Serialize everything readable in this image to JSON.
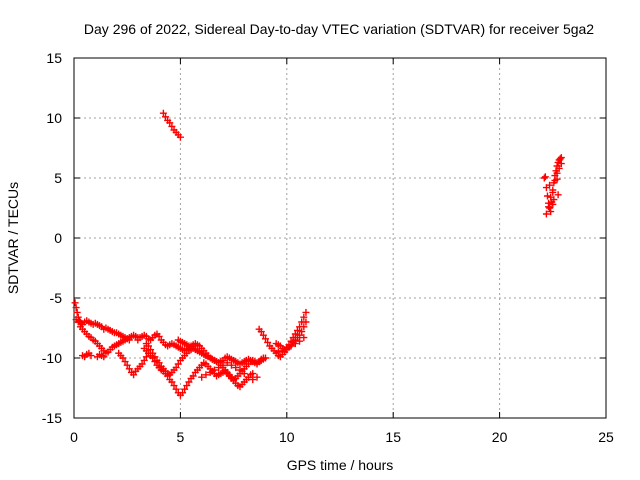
{
  "chart_data": {
    "type": "scatter",
    "title": "Day 296 of 2022, Sidereal Day-to-day VTEC variation (SDTVAR) for receiver 5ga2",
    "xlabel": "GPS time / hours",
    "ylabel": "SDTVAR / TECUs",
    "xlim": [
      0,
      25
    ],
    "ylim": [
      -15,
      15
    ],
    "xticks": [
      "0",
      "5",
      "10",
      "15",
      "20",
      "25"
    ],
    "yticks": [
      "-15",
      "-10",
      "-5",
      "0",
      "5",
      "10",
      "15"
    ],
    "grid": true,
    "marker": "+",
    "color": "#ff0000",
    "series": [
      {
        "name": "SDTVAR",
        "x": [
          0.05,
          0.1,
          0.15,
          0.2,
          0.25,
          0.3,
          0.35,
          0.4,
          0.5,
          0.6,
          0.7,
          0.8,
          0.9,
          1.0,
          1.1,
          1.2,
          1.3,
          1.4,
          1.5,
          1.6,
          1.7,
          1.8,
          1.9,
          2.0,
          2.1,
          2.2,
          2.3,
          2.4,
          2.5,
          2.6,
          0.1,
          0.2,
          0.3,
          0.4,
          0.5,
          0.6,
          0.7,
          0.8,
          0.9,
          1.0,
          1.1,
          1.2,
          1.3,
          1.4,
          1.5,
          1.6,
          1.7,
          1.8,
          1.9,
          2.0,
          2.1,
          2.2,
          2.3,
          2.4,
          2.5,
          2.6,
          2.7,
          2.8,
          2.9,
          3.0,
          0.4,
          0.5,
          0.6,
          0.7,
          0.8,
          1.1,
          1.2,
          1.3,
          1.4,
          2.1,
          2.2,
          2.3,
          2.4,
          2.5,
          2.6,
          2.7,
          2.8,
          2.9,
          3.0,
          3.1,
          3.2,
          3.3,
          3.4,
          3.5,
          3.0,
          3.1,
          3.2,
          3.3,
          3.4,
          3.5,
          3.6,
          3.7,
          3.8,
          3.9,
          4.0,
          4.1,
          4.2,
          4.3,
          4.4,
          4.5,
          4.6,
          4.7,
          4.8,
          4.9,
          5.0,
          5.1,
          5.2,
          5.3,
          5.4,
          5.5,
          5.6,
          5.7,
          5.8,
          5.9,
          6.0,
          6.1,
          6.2,
          6.3,
          6.4,
          6.5,
          6.6,
          6.7,
          6.8,
          6.9,
          7.0,
          7.1,
          7.2,
          7.3,
          7.4,
          7.5,
          7.6,
          7.7,
          7.8,
          7.9,
          8.0,
          8.1,
          8.2,
          8.3,
          8.4,
          8.5,
          8.6,
          8.7,
          8.8,
          8.9,
          3.3,
          3.4,
          3.5,
          3.6,
          3.7,
          3.8,
          3.9,
          4.0,
          4.1,
          4.2,
          4.3,
          4.4,
          4.5,
          4.6,
          4.7,
          4.8,
          4.9,
          5.0,
          5.1,
          5.2,
          5.3,
          5.4,
          5.5,
          5.6,
          5.7,
          5.8,
          5.9,
          6.0,
          6.1,
          6.2,
          6.3,
          6.4,
          6.5,
          6.6,
          6.7,
          6.8,
          6.9,
          7.0,
          7.1,
          7.2,
          7.3,
          7.4,
          7.5,
          7.6,
          7.7,
          7.8,
          7.9,
          8.0,
          8.1,
          8.2,
          8.3,
          8.4,
          3.4,
          3.5,
          3.6,
          3.7,
          3.8,
          3.9,
          4.0,
          4.1,
          4.2,
          4.3,
          4.4,
          4.5,
          4.6,
          4.7,
          4.8,
          4.9,
          5.0,
          5.1,
          5.2,
          5.3,
          5.4,
          5.5,
          4.9,
          5.0,
          5.1,
          5.2,
          5.3,
          5.4,
          5.5,
          5.6,
          5.7,
          5.8,
          5.9,
          6.0,
          6.1,
          6.2,
          6.3,
          6.4,
          6.5,
          6.6,
          6.7,
          6.8,
          6.9,
          7.0,
          7.1,
          7.2,
          7.3,
          7.4,
          7.5,
          7.6,
          7.7,
          7.8,
          7.9,
          8.0,
          8.1,
          8.2,
          8.3,
          8.4,
          8.5,
          8.6,
          8.7,
          8.8,
          8.9,
          9.0,
          6.0,
          6.2,
          6.4,
          6.6,
          6.8,
          7.0,
          7.2,
          7.4,
          7.6,
          7.8,
          8.0,
          8.2,
          8.4,
          8.6,
          8.7,
          8.8,
          8.9,
          9.0,
          9.1,
          9.2,
          9.3,
          9.4,
          9.5,
          9.6,
          9.7,
          9.8,
          9.9,
          10.0,
          10.1,
          10.2,
          10.3,
          10.4,
          10.5,
          10.6,
          10.7,
          10.8,
          10.9,
          9.5,
          9.6,
          9.7,
          9.8,
          9.9,
          10.0,
          10.1,
          10.2,
          10.3,
          10.4,
          10.5,
          10.6,
          10.7,
          10.8,
          10.9,
          9.6,
          9.8,
          10.0,
          10.2,
          10.4,
          10.6,
          10.8,
          4.2,
          4.3,
          4.4,
          4.5,
          4.6,
          4.7,
          4.8,
          4.9,
          5.0,
          22.1,
          22.2,
          22.25,
          22.3,
          22.35,
          22.4,
          22.45,
          22.5,
          22.55,
          22.6,
          22.65,
          22.7,
          22.75,
          22.8,
          22.85,
          22.9,
          22.2,
          22.3,
          22.4,
          22.5,
          22.6,
          22.7,
          22.8,
          22.9,
          22.15,
          22.35,
          22.55,
          22.75,
          22.5,
          22.7
        ],
        "y": [
          -5.4,
          -5.8,
          -6.2,
          -6.6,
          -6.9,
          -7.0,
          -7.1,
          -7.2,
          -7.0,
          -6.9,
          -7.0,
          -7.1,
          -7.2,
          -7.1,
          -7.2,
          -7.3,
          -7.4,
          -7.6,
          -7.5,
          -7.6,
          -7.7,
          -7.8,
          -7.9,
          -7.9,
          -8.0,
          -8.1,
          -8.2,
          -8.3,
          -8.4,
          -8.5,
          -6.8,
          -7.0,
          -7.4,
          -7.6,
          -7.8,
          -8.0,
          -8.2,
          -8.3,
          -8.5,
          -8.6,
          -8.8,
          -9.0,
          -9.2,
          -9.4,
          -9.6,
          -9.5,
          -9.3,
          -9.1,
          -9.0,
          -8.9,
          -8.8,
          -8.7,
          -8.6,
          -8.5,
          -8.4,
          -8.3,
          -8.2,
          -8.1,
          -8.2,
          -8.3,
          -9.8,
          -9.9,
          -9.7,
          -9.6,
          -9.8,
          -9.9,
          -9.7,
          -9.8,
          -9.9,
          -9.6,
          -9.8,
          -10.0,
          -10.3,
          -10.6,
          -10.9,
          -11.2,
          -11.4,
          -11.1,
          -10.9,
          -10.7,
          -10.5,
          -10.2,
          -9.9,
          -9.6,
          -8.5,
          -8.3,
          -8.2,
          -8.1,
          -8.2,
          -8.4,
          -8.5,
          -8.3,
          -8.1,
          -8.0,
          -8.2,
          -8.5,
          -8.7,
          -8.9,
          -9.0,
          -8.9,
          -8.8,
          -8.9,
          -9.0,
          -9.1,
          -9.2,
          -9.3,
          -9.4,
          -9.3,
          -9.2,
          -9.0,
          -8.9,
          -8.8,
          -8.9,
          -9.0,
          -9.2,
          -9.4,
          -9.6,
          -9.8,
          -10.0,
          -10.1,
          -10.2,
          -10.3,
          -10.4,
          -10.3,
          -10.2,
          -10.0,
          -9.9,
          -10.0,
          -10.1,
          -10.2,
          -10.3,
          -10.4,
          -10.5,
          -10.4,
          -10.3,
          -10.2,
          -10.1,
          -10.2,
          -10.3,
          -10.4,
          -10.5,
          -10.3,
          -10.1,
          -10.0,
          -9.2,
          -9.4,
          -9.6,
          -9.8,
          -10.0,
          -10.3,
          -10.6,
          -10.8,
          -11.0,
          -11.1,
          -11.3,
          -11.5,
          -11.8,
          -12.0,
          -12.3,
          -12.6,
          -12.9,
          -13.1,
          -12.9,
          -12.6,
          -12.3,
          -12.0,
          -11.7,
          -11.5,
          -11.2,
          -11.0,
          -10.8,
          -10.6,
          -10.4,
          -10.5,
          -10.7,
          -10.9,
          -11.1,
          -11.3,
          -11.5,
          -11.4,
          -11.3,
          -11.2,
          -11.1,
          -11.3,
          -11.5,
          -11.7,
          -11.9,
          -12.1,
          -12.3,
          -12.4,
          -12.2,
          -12.0,
          -11.8,
          -11.6,
          -11.4,
          -11.3,
          -8.8,
          -9.0,
          -9.3,
          -9.6,
          -9.9,
          -10.2,
          -10.4,
          -10.7,
          -10.9,
          -11.1,
          -11.3,
          -11.4,
          -11.2,
          -11.0,
          -10.8,
          -10.5,
          -10.2,
          -10.0,
          -9.8,
          -9.6,
          -9.4,
          -9.3,
          -8.5,
          -8.6,
          -8.7,
          -8.8,
          -8.9,
          -9.0,
          -9.1,
          -9.2,
          -9.3,
          -9.4,
          -9.5,
          -9.6,
          -9.7,
          -9.8,
          -9.9,
          -10.0,
          -10.1,
          -10.2,
          -10.3,
          -10.4,
          -10.6,
          -10.8,
          -11.0,
          -11.2,
          -11.4,
          -11.6,
          -11.8,
          -11.7,
          -11.5,
          -11.3,
          -11.1,
          -10.9,
          -10.7,
          -10.5,
          -10.3,
          -10.2,
          -10.3,
          -10.4,
          -10.3,
          -10.2,
          -10.1,
          -10.0,
          -11.6,
          -11.4,
          -11.2,
          -11.0,
          -10.8,
          -10.6,
          -10.4,
          -10.6,
          -10.8,
          -11.0,
          -11.3,
          -11.6,
          -11.8,
          -11.6,
          -7.6,
          -7.8,
          -8.1,
          -8.4,
          -8.7,
          -9.0,
          -9.2,
          -9.4,
          -9.6,
          -9.8,
          -9.9,
          -9.7,
          -9.5,
          -9.3,
          -9.1,
          -8.9,
          -8.7,
          -8.5,
          -8.3,
          -8.1,
          -7.8,
          -7.4,
          -7.0,
          -8.8,
          -8.9,
          -9.0,
          -9.2,
          -9.3,
          -9.1,
          -8.9,
          -8.6,
          -8.3,
          -8.0,
          -7.7,
          -7.4,
          -7.0,
          -6.6,
          -6.2,
          -9.5,
          -9.4,
          -9.2,
          -9.0,
          -8.8,
          -8.6,
          -8.3,
          10.4,
          10.1,
          9.8,
          9.6,
          9.3,
          9.0,
          8.8,
          8.6,
          8.4,
          5.0,
          4.2,
          3.5,
          2.9,
          2.5,
          2.2,
          3.0,
          3.8,
          4.6,
          5.2,
          5.6,
          6.0,
          6.3,
          6.5,
          6.6,
          6.7,
          2.0,
          2.6,
          3.4,
          4.0,
          4.8,
          5.4,
          5.8,
          6.2,
          5.1,
          4.4,
          3.2,
          3.6,
          2.8,
          4.9
        ]
      }
    ]
  }
}
